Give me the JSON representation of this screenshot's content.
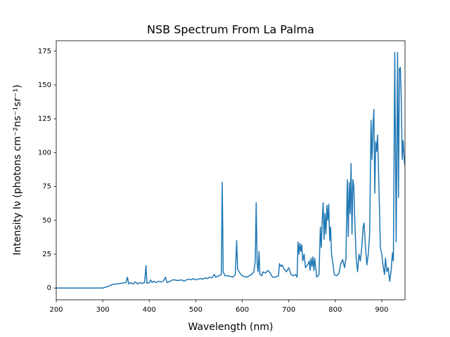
{
  "chart_data": {
    "type": "line",
    "title": "NSB Spectrum From La Palma",
    "xlabel": "Wavelength (nm)",
    "ylabel": "Intensity Iν (photons cm⁻²ns⁻¹sr⁻¹)",
    "x": [
      200,
      300,
      310,
      320,
      340,
      350,
      353,
      356,
      360,
      365,
      370,
      375,
      380,
      385,
      390,
      393,
      395,
      400,
      403,
      406,
      410,
      415,
      420,
      425,
      430,
      435,
      438,
      445,
      450,
      455,
      460,
      470,
      475,
      480,
      485,
      490,
      495,
      500,
      505,
      510,
      515,
      520,
      525,
      530,
      535,
      540,
      543,
      550,
      555,
      557,
      559,
      563,
      570,
      580,
      585,
      588,
      590,
      595,
      600,
      610,
      615,
      620,
      625,
      628,
      630,
      632,
      634,
      636,
      638,
      642,
      645,
      650,
      655,
      660,
      665,
      670,
      678,
      680,
      683,
      686,
      690,
      695,
      700,
      705,
      710,
      715,
      718,
      720,
      722,
      724,
      726,
      728,
      730,
      733,
      736,
      740,
      742,
      744,
      746,
      748,
      750,
      752,
      754,
      756,
      760,
      765,
      768,
      770,
      772,
      774,
      776,
      778,
      780,
      782,
      784,
      786,
      788,
      790,
      792,
      795,
      798,
      802,
      806,
      808,
      812,
      816,
      820,
      823,
      826,
      828,
      830,
      832,
      834,
      836,
      838,
      840,
      842,
      845,
      848,
      851,
      854,
      857,
      860,
      862,
      865,
      868,
      871,
      874,
      877,
      879,
      881,
      883,
      885,
      887,
      889,
      891,
      893,
      895,
      897,
      900,
      903,
      906,
      908,
      911,
      914,
      917,
      920,
      923,
      925,
      928,
      931,
      934,
      936,
      938,
      940,
      942,
      944,
      946,
      948,
      950
    ],
    "series": [
      {
        "name": "NSB",
        "color": "#1f77b4",
        "values": [
          0,
          0,
          1,
          2.5,
          3.5,
          4,
          8,
          3,
          4,
          3,
          4.5,
          3,
          4,
          3.5,
          4,
          16.5,
          3.5,
          4,
          6,
          4,
          5,
          4,
          5,
          4.5,
          5,
          8,
          4,
          5,
          6,
          6,
          5.5,
          6,
          5,
          6,
          6.5,
          6,
          7,
          6,
          6.5,
          7,
          6.5,
          7.5,
          7,
          8,
          7.5,
          10,
          8,
          9,
          10,
          78,
          12,
          9,
          9,
          8,
          10,
          35,
          14,
          11,
          9,
          8,
          9,
          10,
          12,
          20,
          63,
          18,
          12,
          27,
          10,
          9,
          12,
          11,
          13,
          11,
          8,
          8,
          9,
          18,
          16,
          17,
          14,
          12,
          15,
          10,
          9,
          10,
          8,
          34,
          25,
          33,
          27,
          32,
          20,
          25,
          15,
          17,
          18,
          20,
          13,
          22,
          16,
          23,
          13,
          22,
          8,
          10,
          45,
          30,
          50,
          63,
          36,
          55,
          40,
          61,
          50,
          62,
          35,
          45,
          25,
          18,
          10,
          9,
          10,
          11,
          18,
          21,
          15,
          22,
          80,
          38,
          78,
          55,
          92,
          40,
          80,
          75,
          50,
          22,
          12,
          25,
          20,
          30,
          45,
          48,
          30,
          17,
          25,
          40,
          124,
          95,
          118,
          132,
          70,
          108,
          101,
          113,
          87,
          60,
          30,
          25,
          16,
          10,
          22,
          12,
          15,
          5,
          12,
          26,
          20,
          174,
          34,
          174,
          67,
          162,
          163,
          140,
          95,
          109,
          96,
          90
        ]
      }
    ],
    "xlim": [
      200,
      950
    ],
    "ylim": [
      -8.7,
      182.7
    ],
    "xticks": [
      200,
      300,
      400,
      500,
      600,
      700,
      800,
      900
    ],
    "yticks": [
      0,
      25,
      50,
      75,
      100,
      125,
      150,
      175
    ]
  }
}
